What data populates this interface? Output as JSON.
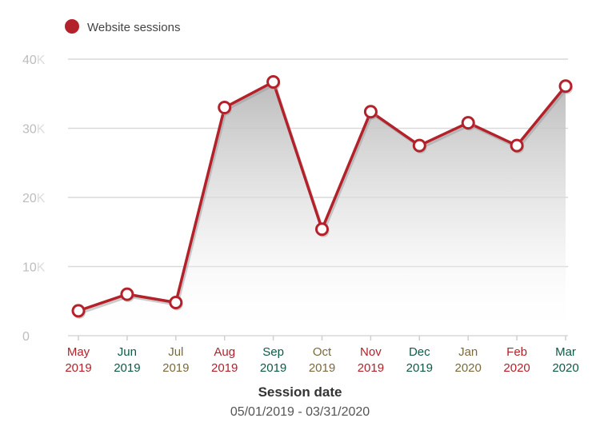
{
  "chart_data": {
    "type": "area",
    "legend": {
      "label": "Website sessions",
      "color": "#b3222a",
      "placement": "top-left"
    },
    "x": [
      {
        "month": "May",
        "year": "2019",
        "color": "#b3222a"
      },
      {
        "month": "Jun",
        "year": "2019",
        "color": "#0f5a45"
      },
      {
        "month": "Jul",
        "year": "2019",
        "color": "#7a6a3c"
      },
      {
        "month": "Aug",
        "year": "2019",
        "color": "#b3222a"
      },
      {
        "month": "Sep",
        "year": "2019",
        "color": "#0f5a45"
      },
      {
        "month": "Oct",
        "year": "2019",
        "color": "#7a6a3c"
      },
      {
        "month": "Nov",
        "year": "2019",
        "color": "#b3222a"
      },
      {
        "month": "Dec",
        "year": "2019",
        "color": "#0f5a45"
      },
      {
        "month": "Jan",
        "year": "2020",
        "color": "#7a6a3c"
      },
      {
        "month": "Feb",
        "year": "2020",
        "color": "#b3222a"
      },
      {
        "month": "Mar",
        "year": "2020",
        "color": "#0f5a45"
      }
    ],
    "series": [
      {
        "name": "Website sessions",
        "color": "#b3222a",
        "values": [
          3600,
          6000,
          4800,
          33000,
          36700,
          15400,
          32400,
          27500,
          30800,
          27500,
          36100
        ]
      }
    ],
    "ylim": [
      0,
      40000
    ],
    "yticks": [
      {
        "value": 0,
        "label": "0",
        "suffix": ""
      },
      {
        "value": 10000,
        "label": "10",
        "suffix": "K"
      },
      {
        "value": 20000,
        "label": "20",
        "suffix": "K"
      },
      {
        "value": 30000,
        "label": "30",
        "suffix": "K"
      },
      {
        "value": 40000,
        "label": "40",
        "suffix": "K"
      }
    ],
    "xlabel": "Session date",
    "subtitle": "05/01/2019 - 03/31/2020",
    "grid": true
  }
}
